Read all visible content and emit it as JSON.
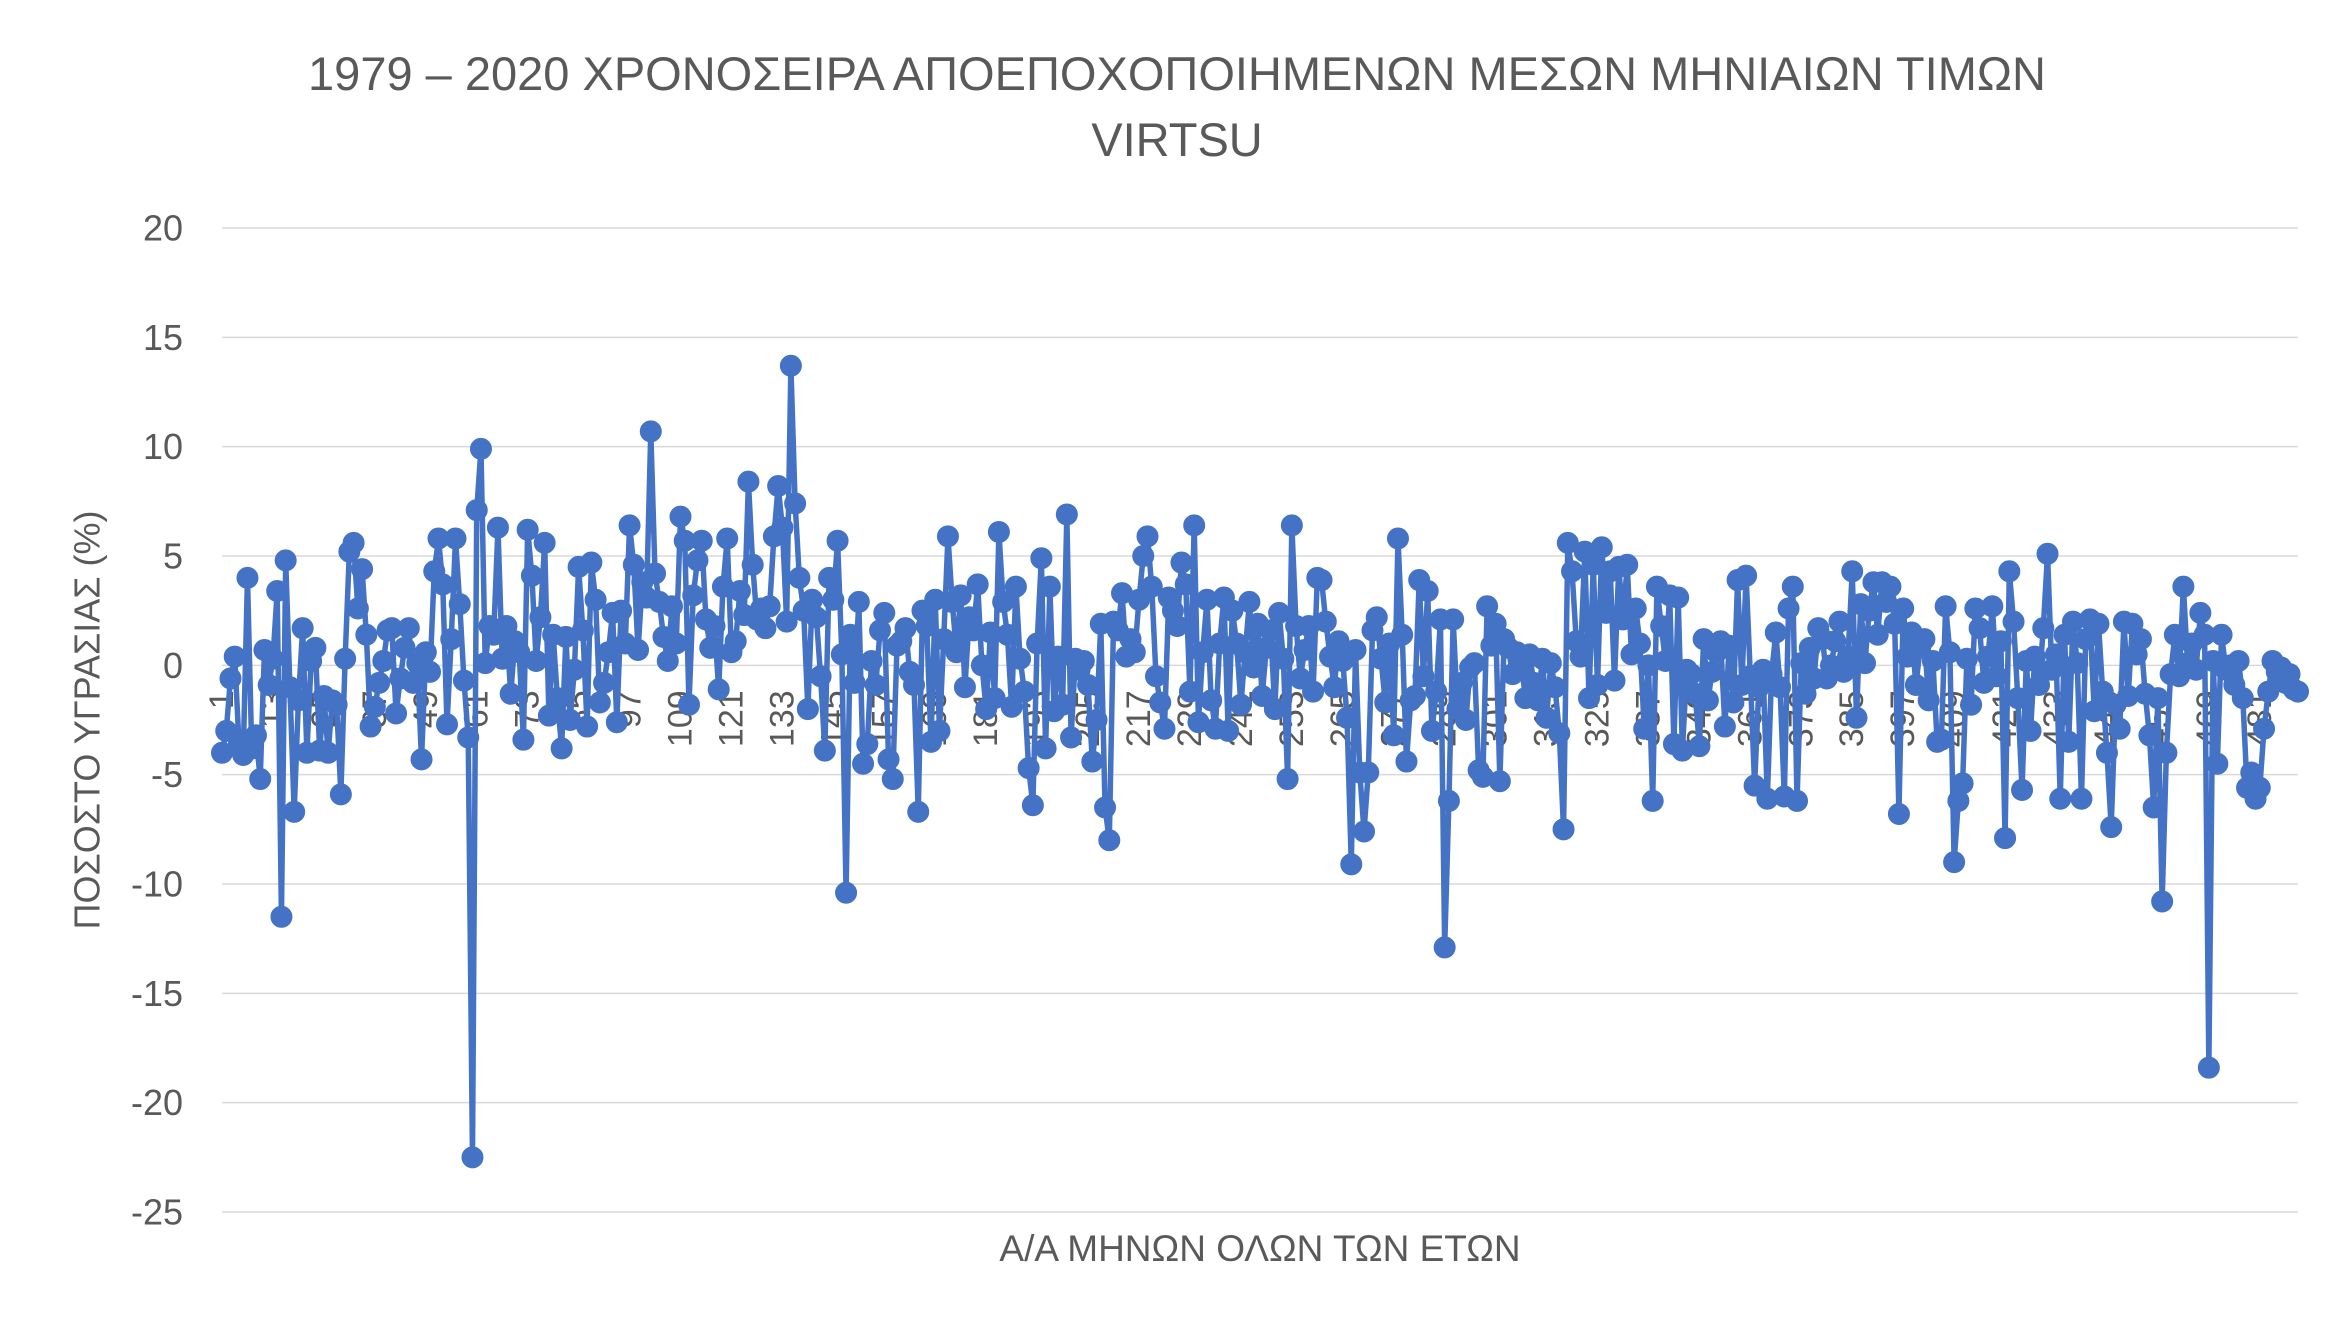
{
  "chart_data": {
    "type": "line",
    "title_lines": [
      "1979 – 2020 ΧΡΟΝΟΣΕΙΡΑ ΑΠΟΕΠΟΧΟΠΟΙΗΜΕΝΩΝ ΜΕΣΩΝ ΜΗΝΙΑΙΩΝ ΤΙΜΩΝ",
      "VIRTSU"
    ],
    "xlabel": "Α/Α ΜΗΝΩΝ ΟΛΩΝ ΤΩΝ ΕΤΩΝ",
    "ylabel": "ΠΟΣΟΣΤΟ ΥΓΡΑΣΙΑΣ (%)",
    "ylim": [
      -25,
      20
    ],
    "y_ticks": [
      20,
      15,
      10,
      5,
      0,
      -5,
      -10,
      -15,
      -20,
      -25
    ],
    "x_tick_labels": [
      "1",
      "13",
      "25",
      "37",
      "49",
      "61",
      "73",
      "85",
      "97",
      "109",
      "121",
      "133",
      "145",
      "157",
      "169",
      "181",
      "193",
      "205",
      "217",
      "229",
      "241",
      "253",
      "265",
      "277",
      "289",
      "301",
      "313",
      "325",
      "337",
      "349",
      "361",
      "373",
      "385",
      "397",
      "409",
      "421",
      "433",
      "445",
      "457",
      "469",
      "481"
    ],
    "grid": true,
    "colors": {
      "series": "#4472C4",
      "text": "#595959",
      "grid": "#D9D9D9"
    },
    "series": [
      {
        "color": "#4472C4",
        "values": [
          -4.0,
          -3.0,
          -0.6,
          0.4,
          -3.6,
          -4.1,
          4.0,
          -3.8,
          -3.2,
          -5.2,
          0.7,
          -0.9,
          0.3,
          3.4,
          -11.5,
          4.8,
          -1.0,
          -6.7,
          -1.6,
          1.7,
          -4.0,
          0.2,
          0.8,
          -3.9,
          -1.4,
          -4.0,
          -1.6,
          -1.8,
          -5.9,
          0.3,
          5.2,
          5.6,
          2.6,
          4.4,
          1.4,
          -2.8,
          -1.9,
          -0.8,
          0.2,
          1.6,
          1.7,
          -2.2,
          -0.6,
          0.8,
          1.7,
          -0.8,
          0.1,
          -4.3,
          0.6,
          -0.3,
          4.3,
          5.8,
          3.7,
          -2.7,
          1.2,
          5.8,
          2.8,
          -0.7,
          -3.3,
          -22.5,
          7.1,
          9.9,
          0.1,
          1.8,
          1.4,
          6.3,
          0.3,
          1.8,
          -1.3,
          1.1,
          0.6,
          -3.4,
          6.2,
          4.1,
          0.2,
          2.2,
          5.6,
          -2.3,
          1.4,
          -1.5,
          -3.8,
          1.3,
          -2.5,
          -0.2,
          4.5,
          1.6,
          -2.8,
          4.7,
          3.0,
          -1.7,
          -0.8,
          0.6,
          2.4,
          -2.6,
          2.5,
          1.0,
          6.4,
          4.6,
          0.7,
          3.8,
          3.1,
          10.7,
          4.2,
          2.9,
          1.3,
          0.2,
          2.7,
          1.0,
          6.8,
          5.7,
          -1.8,
          3.2,
          4.8,
          5.7,
          2.1,
          0.8,
          1.8,
          -1.1,
          3.6,
          5.8,
          0.6,
          1.1,
          3.4,
          2.3,
          8.4,
          4.6,
          2.1,
          2.6,
          1.7,
          2.7,
          5.9,
          8.2,
          6.3,
          2.0,
          13.7,
          7.4,
          4.0,
          2.5,
          -2.0,
          3.0,
          2.2,
          -0.5,
          -3.9,
          4.0,
          3.0,
          5.7,
          0.5,
          -10.4,
          1.4,
          -0.8,
          2.9,
          -4.5,
          -3.6,
          0.2,
          -0.9,
          1.6,
          2.4,
          -4.3,
          -5.2,
          0.9,
          1.1,
          1.7,
          -0.3,
          -0.9,
          -6.7,
          2.5,
          1.8,
          -3.5,
          3.0,
          -3.0,
          1.2,
          5.9,
          2.9,
          0.6,
          3.2,
          -1.0,
          2.2,
          1.6,
          3.7,
          0.0,
          -2.0,
          1.5,
          -1.5,
          6.1,
          2.9,
          1.4,
          -1.9,
          3.6,
          0.3,
          -1.2,
          -4.7,
          -6.4,
          1.0,
          4.9,
          -3.8,
          3.6,
          -2.1,
          0.4,
          -1.8,
          6.9,
          -3.3,
          0.3,
          -0.2,
          0.2,
          -0.9,
          -4.4,
          -2.5,
          1.9,
          -6.5,
          -8.0,
          2.0,
          1.6,
          3.3,
          0.4,
          1.2,
          0.6,
          3.0,
          5.0,
          5.9,
          3.6,
          -0.5,
          -1.7,
          -2.9,
          3.1,
          2.5,
          1.8,
          4.7,
          3.7,
          -1.2,
          6.4,
          -2.6,
          0.6,
          3.0,
          -1.6,
          -2.9,
          1.0,
          3.1,
          -3.0,
          2.5,
          1.0,
          -1.8,
          0.6,
          2.9,
          -0.1,
          1.9,
          -1.4,
          0.8,
          1.6,
          -2.0,
          2.4,
          0.3,
          -5.2,
          6.4,
          1.8,
          -0.6,
          0.7,
          1.8,
          -1.2,
          4.0,
          3.9,
          2.0,
          0.4,
          -1.0,
          1.1,
          0.2,
          -2.4,
          -9.1,
          0.7,
          -4.9,
          -7.6,
          -4.9,
          1.6,
          2.2,
          0.3,
          -1.7,
          1.0,
          -3.2,
          5.8,
          1.4,
          -4.4,
          -1.6,
          -1.4,
          3.9,
          -0.5,
          3.4,
          -3.0,
          -1.2,
          2.1,
          -12.9,
          -6.2,
          2.1,
          -2.0,
          -0.8,
          -2.5,
          -0.1,
          0.1,
          -4.8,
          -5.1,
          2.7,
          0.9,
          1.9,
          -5.3,
          1.2,
          0.8,
          -0.4,
          0.6,
          0.2,
          -1.5,
          0.5,
          -0.8,
          -1.6,
          0.3,
          -2.4,
          0.1,
          -1.0,
          -3.1,
          -7.5,
          5.6,
          4.3,
          1.1,
          0.4,
          5.2,
          -1.5,
          4.6,
          -0.9,
          5.4,
          2.4,
          4.3,
          -0.7,
          4.5,
          2.1,
          4.6,
          0.5,
          2.6,
          1.0,
          -2.9,
          0.0,
          -6.2,
          3.6,
          1.8,
          0.2,
          3.2,
          -3.6,
          3.1,
          -3.9,
          -0.2,
          -0.4,
          -1.3,
          -3.7,
          1.2,
          -1.6,
          -0.3,
          0.6,
          1.1,
          -2.8,
          0.9,
          -1.7,
          3.9,
          -0.9,
          4.1,
          -0.5,
          -5.5,
          -1.0,
          -0.2,
          -6.1,
          -0.4,
          1.5,
          -1.0,
          -6.0,
          2.6,
          3.6,
          -6.2,
          0.1,
          -1.3,
          0.8,
          -0.6,
          1.7,
          1.2,
          -0.6,
          0.0,
          1.1,
          2.0,
          -0.3,
          0.4,
          4.3,
          -2.4,
          2.8,
          0.1,
          2.5,
          3.8,
          1.4,
          3.8,
          2.9,
          3.6,
          1.9,
          -6.8,
          2.6,
          0.4,
          1.5,
          -0.9,
          0.8,
          1.2,
          -1.6,
          0.2,
          -3.5,
          -3.4,
          2.7,
          0.6,
          -9.0,
          -6.2,
          -5.4,
          0.3,
          -1.8,
          2.6,
          1.7,
          -0.8,
          0.4,
          2.7,
          -0.5,
          1.1,
          -7.9,
          4.3,
          2.0,
          -1.5,
          -5.7,
          0.2,
          -3.0,
          0.4,
          -0.9,
          1.7,
          5.1,
          -0.2,
          0.5,
          -6.1,
          1.4,
          -3.5,
          2.0,
          0.1,
          -6.1,
          1.2,
          2.1,
          -2.1,
          1.9,
          -1.2,
          -4.0,
          -7.4,
          -1.8,
          -2.9,
          2.0,
          -1.4,
          1.9,
          0.5,
          1.2,
          -1.3,
          -3.2,
          -6.5,
          -1.5,
          -10.8,
          -4.0,
          -0.4,
          1.4,
          -0.5,
          3.6,
          0.1,
          1.0,
          -0.2,
          2.4,
          1.4,
          -18.4,
          0.2,
          -4.5,
          1.4,
          -0.2,
          0.0,
          -0.9,
          0.2,
          -1.5,
          -5.6,
          -4.9,
          -6.1,
          -5.6,
          -2.9,
          -1.2,
          0.2,
          -0.3,
          -0.1,
          -0.8,
          -0.4,
          -1.1,
          -1.2
        ]
      }
    ]
  }
}
